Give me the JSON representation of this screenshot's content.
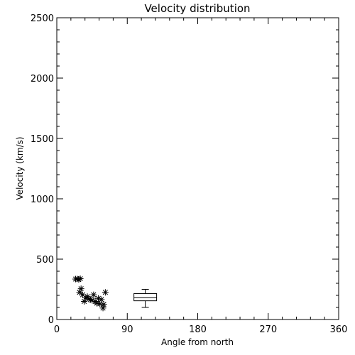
{
  "chart_data": {
    "type": "scatter",
    "title": "Velocity distribution",
    "xlabel": "Angle from north",
    "ylabel": "Velocity (km/s)",
    "xlim": [
      0,
      360
    ],
    "ylim": [
      0,
      2500
    ],
    "xticks": [
      0,
      90,
      180,
      270,
      360
    ],
    "yticks": [
      0,
      500,
      1000,
      1500,
      2000,
      2500
    ],
    "grid": false,
    "colors": {
      "foreground": "#000000",
      "background": "#ffffff"
    },
    "points_marker": "asterisk",
    "points": [
      {
        "x": 24,
        "y": 335
      },
      {
        "x": 26,
        "y": 336
      },
      {
        "x": 28,
        "y": 332
      },
      {
        "x": 30,
        "y": 338
      },
      {
        "x": 29,
        "y": 225
      },
      {
        "x": 31,
        "y": 255
      },
      {
        "x": 33,
        "y": 205
      },
      {
        "x": 35,
        "y": 150
      },
      {
        "x": 37,
        "y": 180
      },
      {
        "x": 39,
        "y": 190
      },
      {
        "x": 41,
        "y": 170
      },
      {
        "x": 43,
        "y": 165
      },
      {
        "x": 45,
        "y": 160
      },
      {
        "x": 47,
        "y": 205
      },
      {
        "x": 49,
        "y": 150
      },
      {
        "x": 51,
        "y": 135
      },
      {
        "x": 53,
        "y": 175
      },
      {
        "x": 55,
        "y": 130
      },
      {
        "x": 57,
        "y": 165
      },
      {
        "x": 59,
        "y": 95
      },
      {
        "x": 60,
        "y": 125
      },
      {
        "x": 62,
        "y": 225
      }
    ],
    "boxplot": {
      "x": 113,
      "whisker_low": 100,
      "q1": 155,
      "median": 180,
      "q3": 215,
      "whisker_high": 250
    }
  }
}
